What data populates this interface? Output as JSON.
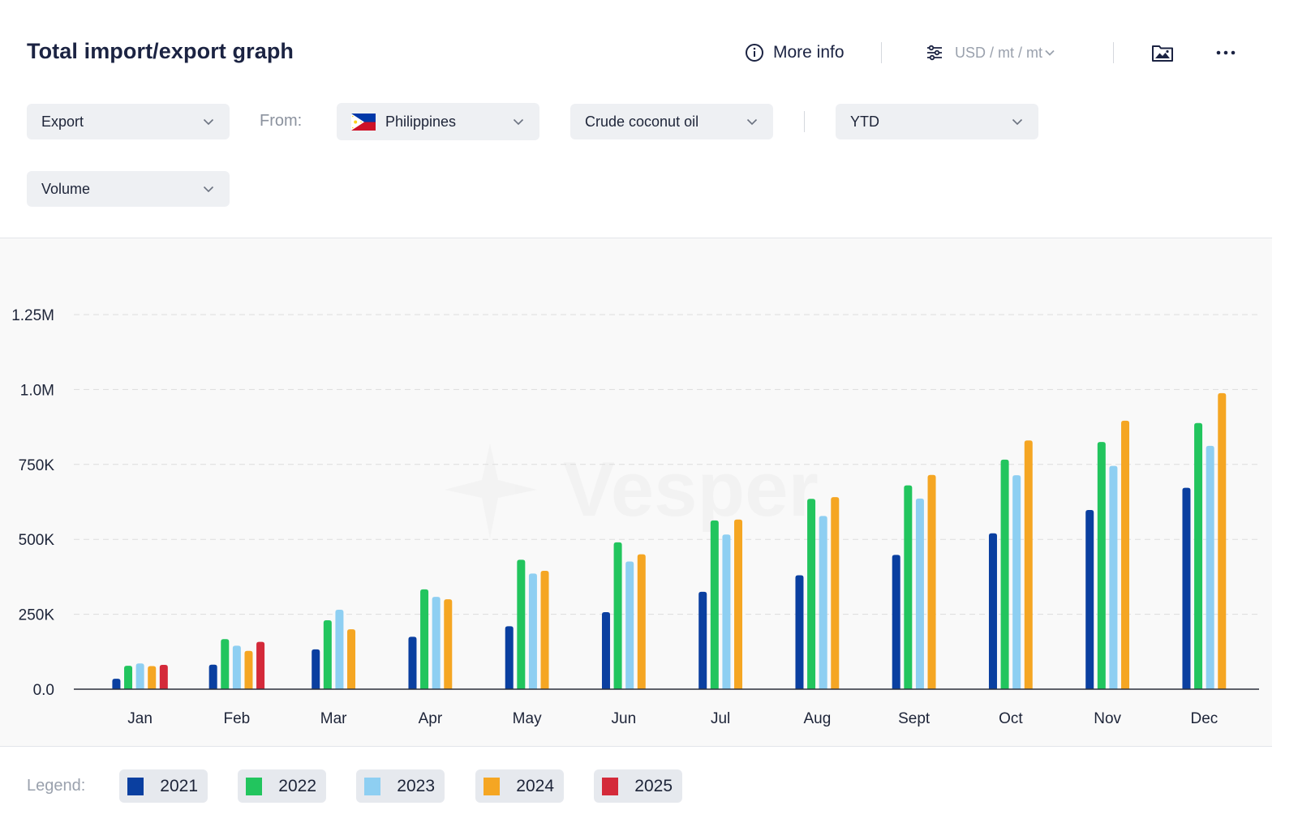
{
  "header": {
    "title": "Total import/export graph",
    "more_info_label": "More info",
    "units_label": "USD / mt / mt"
  },
  "filters": {
    "flow": "Export",
    "from_label": "From:",
    "country": "Philippines",
    "product": "Crude coconut oil",
    "period": "YTD",
    "measure": "Volume"
  },
  "watermark": "Vesper",
  "legend": {
    "label": "Legend:",
    "items": [
      {
        "year": "2021",
        "color": "#0a3fa0"
      },
      {
        "year": "2022",
        "color": "#22c55e"
      },
      {
        "year": "2023",
        "color": "#8ecff2"
      },
      {
        "year": "2024",
        "color": "#f5a623"
      },
      {
        "year": "2025",
        "color": "#d42a3a"
      }
    ]
  },
  "chart_data": {
    "type": "bar",
    "categories": [
      "Jan",
      "Feb",
      "Mar",
      "Apr",
      "May",
      "Jun",
      "Jul",
      "Aug",
      "Sept",
      "Oct",
      "Nov",
      "Dec"
    ],
    "y_ticks": [
      "0.0",
      "250K",
      "500K",
      "750K",
      "1.0M",
      "1.25M"
    ],
    "ylim": [
      0,
      1250000
    ],
    "grid": true,
    "series": [
      {
        "name": "2021",
        "color": "#0a3fa0",
        "values": [
          35000,
          82000,
          133000,
          175000,
          210000,
          257000,
          325000,
          380000,
          448000,
          520000,
          598000,
          672000
        ]
      },
      {
        "name": "2022",
        "color": "#22c55e",
        "values": [
          78000,
          167000,
          230000,
          333000,
          432000,
          490000,
          563000,
          635000,
          680000,
          766000,
          825000,
          888000
        ]
      },
      {
        "name": "2023",
        "color": "#8ecff2",
        "values": [
          86000,
          145000,
          265000,
          308000,
          386000,
          426000,
          516000,
          578000,
          636000,
          714000,
          745000,
          812000
        ]
      },
      {
        "name": "2024",
        "color": "#f5a623",
        "values": [
          77000,
          128000,
          200000,
          300000,
          395000,
          450000,
          566000,
          641000,
          715000,
          830000,
          896000,
          988000
        ]
      },
      {
        "name": "2025",
        "color": "#d42a3a",
        "values": [
          81000,
          158000,
          null,
          null,
          null,
          null,
          null,
          null,
          null,
          null,
          null,
          null
        ]
      }
    ]
  }
}
